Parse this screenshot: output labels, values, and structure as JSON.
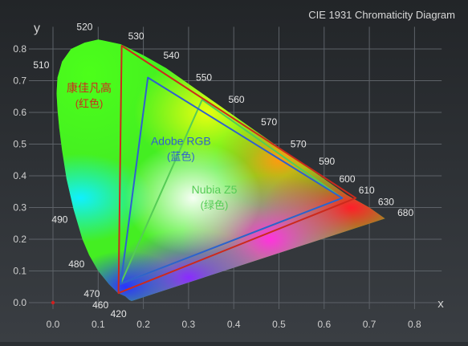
{
  "chart_data": {
    "type": "scatter",
    "title": "CIE 1931 Chromaticity Diagram",
    "xlabel": "x",
    "ylabel": "y",
    "xlim": [
      0,
      0.86
    ],
    "ylim": [
      0,
      0.87
    ],
    "grid": true,
    "x_ticks": [
      "0.0",
      "0.1",
      "0.2",
      "0.3",
      "0.4",
      "0.5",
      "0.6",
      "0.7",
      "0.8"
    ],
    "y_ticks": [
      "0.0",
      "0.1",
      "0.2",
      "0.3",
      "0.4",
      "0.5",
      "0.6",
      "0.7",
      "0.8"
    ],
    "locus": [
      [
        0.1741,
        0.005
      ],
      [
        0.169,
        0.008
      ],
      [
        0.16,
        0.02
      ],
      [
        0.144,
        0.03
      ],
      [
        0.1241,
        0.0578
      ],
      [
        0.1,
        0.1
      ],
      [
        0.08,
        0.15
      ],
      [
        0.065,
        0.2
      ],
      [
        0.0454,
        0.295
      ],
      [
        0.03,
        0.39
      ],
      [
        0.02,
        0.48
      ],
      [
        0.0139,
        0.55
      ],
      [
        0.01,
        0.61
      ],
      [
        0.008,
        0.66
      ],
      [
        0.01,
        0.71
      ],
      [
        0.02,
        0.76
      ],
      [
        0.04,
        0.8
      ],
      [
        0.07,
        0.82
      ],
      [
        0.1,
        0.83
      ],
      [
        0.15,
        0.815
      ],
      [
        0.2,
        0.78
      ],
      [
        0.25,
        0.74
      ],
      [
        0.3,
        0.69
      ],
      [
        0.35,
        0.64
      ],
      [
        0.4,
        0.59
      ],
      [
        0.45,
        0.54
      ],
      [
        0.5,
        0.49
      ],
      [
        0.55,
        0.44
      ],
      [
        0.6,
        0.39
      ],
      [
        0.65,
        0.34
      ],
      [
        0.7,
        0.3
      ],
      [
        0.7347,
        0.2653
      ]
    ],
    "wavelength_labels": [
      {
        "label": "520",
        "x": 0.07,
        "y": 0.87
      },
      {
        "label": "530",
        "x": 0.184,
        "y": 0.84
      },
      {
        "label": "540",
        "x": 0.262,
        "y": 0.78
      },
      {
        "label": "550",
        "x": 0.334,
        "y": 0.71
      },
      {
        "label": "560",
        "x": 0.406,
        "y": 0.64
      },
      {
        "label": "570",
        "x": 0.478,
        "y": 0.57
      },
      {
        "label": "570",
        "x": 0.543,
        "y": 0.5
      },
      {
        "label": "590",
        "x": 0.606,
        "y": 0.445
      },
      {
        "label": "600",
        "x": 0.651,
        "y": 0.39
      },
      {
        "label": "610",
        "x": 0.694,
        "y": 0.355
      },
      {
        "label": "630",
        "x": 0.737,
        "y": 0.318
      },
      {
        "label": "680",
        "x": 0.78,
        "y": 0.283
      },
      {
        "label": "510",
        "x": -0.026,
        "y": 0.75
      },
      {
        "label": "490",
        "x": 0.015,
        "y": 0.262
      },
      {
        "label": "480",
        "x": 0.052,
        "y": 0.122
      },
      {
        "label": "470",
        "x": 0.086,
        "y": 0.028
      },
      {
        "label": "460",
        "x": 0.105,
        "y": -0.008
      },
      {
        "label": "420",
        "x": 0.145,
        "y": -0.035
      }
    ],
    "white_point": {
      "x": 0.0,
      "y": 0.0
    },
    "series": [
      {
        "name_line1": "康佳凡高",
        "name_line2": "(红色)",
        "color": "#cc2a1c",
        "points": [
          [
            0.152,
            0.81
          ],
          [
            0.67,
            0.33
          ],
          [
            0.145,
            0.03
          ]
        ],
        "label_pos": [
          0.08,
          0.665
        ]
      },
      {
        "name_line1": "Adobe RGB",
        "name_line2": "(蓝色)",
        "color": "#2f5fd0",
        "points": [
          [
            0.21,
            0.71
          ],
          [
            0.64,
            0.33
          ],
          [
            0.15,
            0.06
          ]
        ],
        "label_pos": [
          0.283,
          0.497
        ]
      },
      {
        "name_line1": "Nubia Z5",
        "name_line2": "(绿色)",
        "color": "#55cc55",
        "points": [
          [
            0.33,
            0.64
          ],
          [
            0.64,
            0.33
          ],
          [
            0.15,
            0.06
          ]
        ],
        "label_pos": [
          0.357,
          0.344
        ]
      }
    ]
  }
}
